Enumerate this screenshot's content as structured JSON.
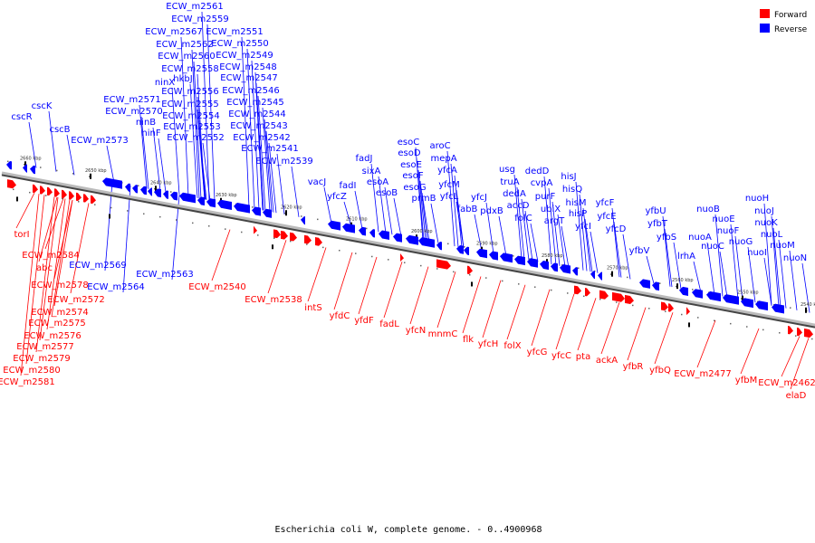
{
  "caption": "Escherichia coli W, complete genome. - 0..4900968",
  "legend": {
    "forward": {
      "label": "Forward",
      "color": "#ff0000"
    },
    "reverse": {
      "label": "Reverse",
      "color": "#0000ff"
    }
  },
  "axis": {
    "ticks": [
      "2660 kbp",
      "2650 kbp",
      "2640 kbp",
      "2630 kbp",
      "2620 kbp",
      "2610 kbp",
      "2600 kbp",
      "2590 kbp",
      "2580 kbp",
      "2570 kbp",
      "2560 kbp",
      "2550 kbp",
      "2540 kbp"
    ]
  },
  "reverse_genes": [
    "cscR",
    "cscK",
    "cscB",
    "ECW_m2573",
    "ECW_m2571",
    "ECW_m2570",
    "ninB",
    "ninF",
    "ninX",
    "hkbJ",
    "ECW_m2561",
    "ECW_m2559",
    "ECW_m2567",
    "ECW_m2562",
    "ECW_m2560",
    "ECW_m2558",
    "ECW_m2556",
    "ECW_m2555",
    "ECW_m2554",
    "ECW_m2553",
    "ECW_m2552",
    "ECW_m2551",
    "ECW_m2550",
    "ECW_m2549",
    "ECW_m2548",
    "ECW_m2547",
    "ECW_m2546",
    "ECW_m2545",
    "ECW_m2544",
    "ECW_m2543",
    "ECW_m2542",
    "ECW_m2541",
    "ECW_m2539",
    "vacJ",
    "yfcZ",
    "fadJ",
    "fadI",
    "sixA",
    "esoA",
    "esoB",
    "esoC",
    "esoD",
    "esoE",
    "esoF",
    "esoG",
    "prmB",
    "aroC",
    "mepA",
    "yfcA",
    "yfcM",
    "yfcL",
    "fabB",
    "yfcJ",
    "pdxB",
    "usg",
    "truA",
    "dedA",
    "accD",
    "folC",
    "dedD",
    "cvpA",
    "purF",
    "ubiX",
    "argT",
    "hisJ",
    "hisQ",
    "hisM",
    "hisP",
    "yfcI",
    "yfcF",
    "yfcE",
    "yfcD",
    "yfbV",
    "yfbU",
    "yfbT",
    "yfbS",
    "lrhA",
    "nuoA",
    "nuoB",
    "nuoE",
    "nuoC",
    "nuoF",
    "nuoG",
    "nuoH",
    "nuoJ",
    "nuoK",
    "nuoI",
    "nuoL",
    "nuoM",
    "nuoN",
    "ECW_m2569",
    "ECW_m2564",
    "ECW_m2563"
  ],
  "forward_genes": [
    "torI",
    "ECW_m2584",
    "abc",
    "ECW_m2578",
    "ECW_m2572",
    "ECW_m2574",
    "ECW_m2575",
    "ECW_m2576",
    "ECW_m2577",
    "ECW_m2579",
    "ECW_m2580",
    "ECW_m2581",
    "ECW_m2540",
    "ECW_m2538",
    "intS",
    "yfdC",
    "yfdF",
    "fadL",
    "yfcN",
    "mnmC",
    "flk",
    "yfcH",
    "folX",
    "yfcG",
    "yfcC",
    "pta",
    "ackA",
    "yfbR",
    "yfbQ",
    "ECW_m2477",
    "yfbM",
    "ECW_m2462",
    "elaD"
  ]
}
